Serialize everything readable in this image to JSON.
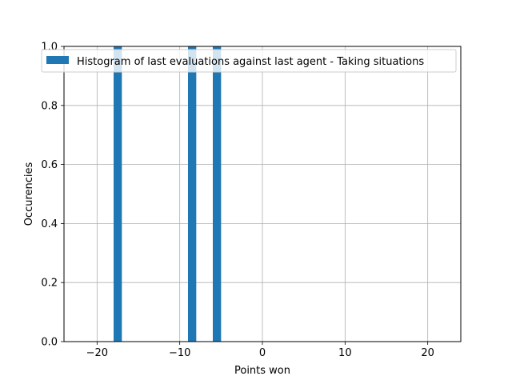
{
  "chart_data": {
    "type": "bar",
    "xlabel": "Points won",
    "ylabel": "Occurencies",
    "xlim": [
      -24,
      24
    ],
    "ylim": [
      0,
      1.0
    ],
    "xticks": [
      -20,
      -10,
      0,
      10,
      20
    ],
    "xtick_labels": [
      "−20",
      "−10",
      "0",
      "10",
      "20"
    ],
    "yticks": [
      0.0,
      0.2,
      0.4,
      0.6,
      0.8,
      1.0
    ],
    "ytick_labels": [
      "0.0",
      "0.2",
      "0.4",
      "0.6",
      "0.8",
      "1.0"
    ],
    "grid": true,
    "legend_position": "top-right",
    "color": "#1f77b4",
    "series": [
      {
        "name": "Histogram of last evaluations against last agent - Taking situations",
        "bins": [
          {
            "x0": -18.0,
            "x1": -17.0,
            "value": 1.0
          },
          {
            "x0": -9.0,
            "x1": -8.0,
            "value": 1.0
          },
          {
            "x0": -6.0,
            "x1": -5.0,
            "value": 1.0
          }
        ]
      }
    ]
  }
}
